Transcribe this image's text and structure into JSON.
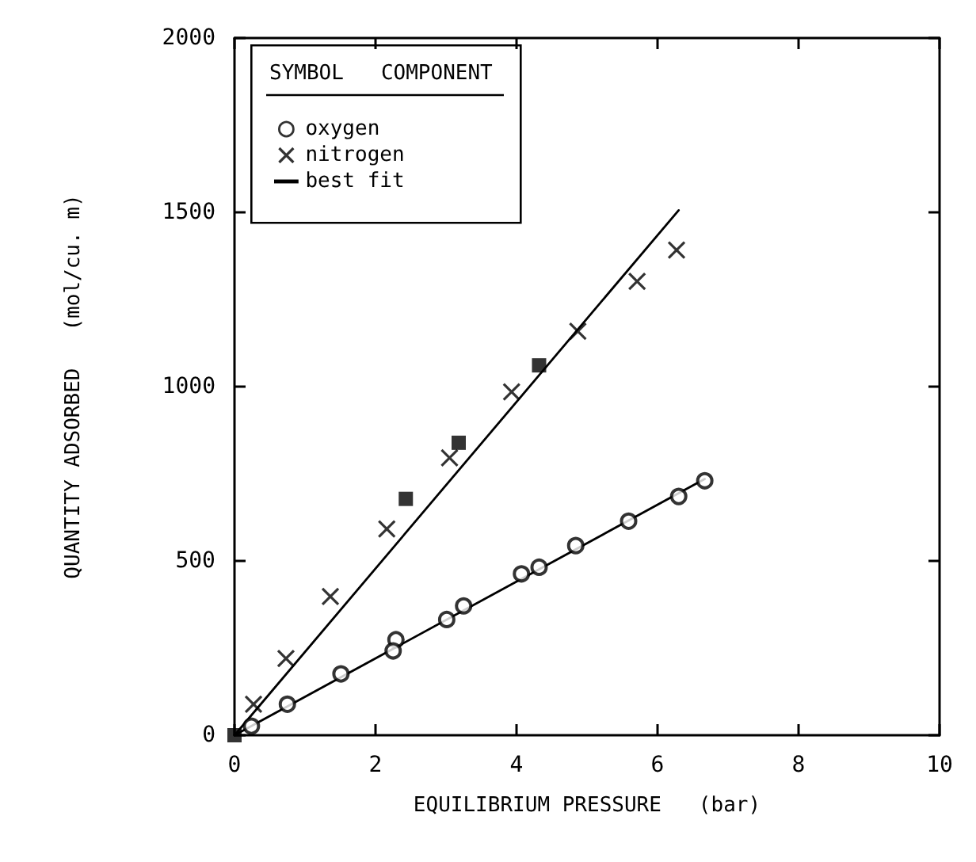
{
  "chart_data": {
    "type": "scatter",
    "xlabel": "EQUILIBRIUM PRESSURE   (bar)",
    "ylabel": "QUANTITY ADSORBED   (mol/cu. m)",
    "xlim": [
      0,
      10
    ],
    "xticks": [
      0,
      2,
      4,
      6,
      8,
      10
    ],
    "ylim": [
      0,
      2000
    ],
    "yticks": [
      0,
      500,
      1000,
      1500,
      2000
    ],
    "grid": false,
    "legend": "top left",
    "legend_title": "SYMBOL   COMPONENT",
    "series": [
      {
        "name": "oxygen",
        "color": "#000000",
        "marker": "circle",
        "x": [
          0.24,
          0.75,
          1.51,
          2.29,
          2.25,
          3.01,
          3.25,
          4.07,
          4.32,
          4.84,
          5.59,
          6.3,
          6.67
        ],
        "values": [
          26,
          89,
          176,
          274,
          242,
          332,
          371,
          463,
          482,
          544,
          614,
          685,
          730
        ]
      },
      {
        "name": "nitrogen",
        "color": "#000000",
        "marker": "cross",
        "x": [
          0.27,
          0.73,
          1.36,
          2.16,
          3.05,
          3.93,
          4.87,
          5.71,
          6.27
        ],
        "values": [
          89,
          220,
          398,
          592,
          796,
          985,
          1159,
          1302,
          1392
        ]
      },
      {
        "color": "#000000",
        "marker": "square",
        "x": [
          0,
          2.43,
          3.18,
          4.32
        ],
        "values": [
          0,
          678,
          839,
          1061
        ]
      },
      {
        "name": "best fit",
        "type": "line",
        "color": "#000000",
        "marker": "none",
        "line_style": "solid",
        "x": [
          0,
          6.67
        ],
        "values": [
          0,
          735
        ]
      },
      {
        "type": "line",
        "color": "#000000",
        "marker": "none",
        "line_style": "solid",
        "x": [
          0,
          6.3
        ],
        "values": [
          0,
          1506
        ]
      }
    ]
  }
}
